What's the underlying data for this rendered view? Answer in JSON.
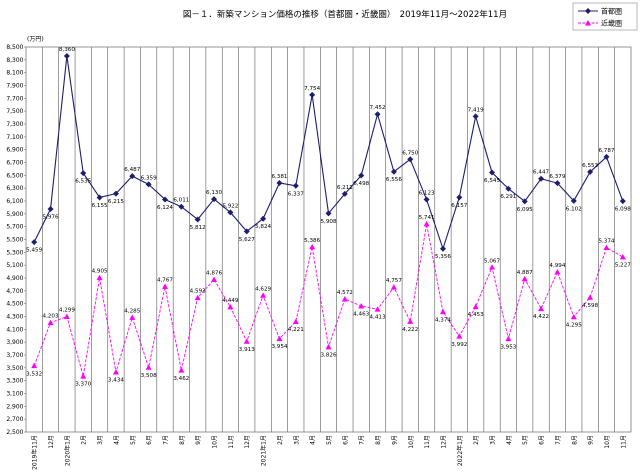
{
  "chart_data": {
    "type": "line",
    "title": "図－１．新築マンション価格の推移（首都圏・近畿圏）　2019年11月～2022年11月",
    "ylabel": "(万円)",
    "xlabel": "",
    "ylim": [
      2500,
      8500
    ],
    "ytick_step": 200,
    "grid": {
      "vertical": true,
      "horizontal": false
    },
    "legend": "top-right",
    "categories": [
      "2019年11月",
      "12月",
      "2020年1月",
      "2月",
      "3月",
      "4月",
      "5月",
      "6月",
      "7月",
      "8月",
      "9月",
      "10月",
      "11月",
      "12月",
      "2021年1月",
      "2月",
      "3月",
      "4月",
      "5月",
      "6月",
      "7月",
      "8月",
      "9月",
      "10月",
      "11月",
      "12月",
      "2022年1月",
      "2月",
      "3月",
      "4月",
      "5月",
      "6月",
      "7月",
      "8月",
      "9月",
      "10月",
      "11月"
    ],
    "series": [
      {
        "name": "首都圏",
        "color": "#1c1f6e",
        "marker": "diamond",
        "line_style": "solid",
        "values": [
          5459,
          5976,
          8360,
          6535,
          6155,
          6215,
          6487,
          6359,
          6124,
          6011,
          5812,
          6130,
          5922,
          5627,
          5824,
          6381,
          6337,
          7754,
          5908,
          6211,
          6498,
          7452,
          6556,
          6750,
          6123,
          5356,
          6157,
          7419,
          6545,
          6291,
          6095,
          6447,
          6379,
          6102,
          6553,
          6787,
          6098
        ]
      },
      {
        "name": "近畿圏",
        "color": "#ff00ff",
        "marker": "triangle",
        "line_style": "dashed",
        "values": [
          3532,
          4203,
          4299,
          3370,
          4905,
          3434,
          4285,
          3508,
          4767,
          3462,
          4593,
          4876,
          4449,
          3913,
          4629,
          3954,
          4221,
          5386,
          3826,
          4572,
          4463,
          4413,
          4757,
          4222,
          5741,
          4374,
          3992,
          4453,
          5067,
          3953,
          4887,
          4422,
          4994,
          4295,
          4598,
          5374,
          5227
        ]
      }
    ]
  }
}
